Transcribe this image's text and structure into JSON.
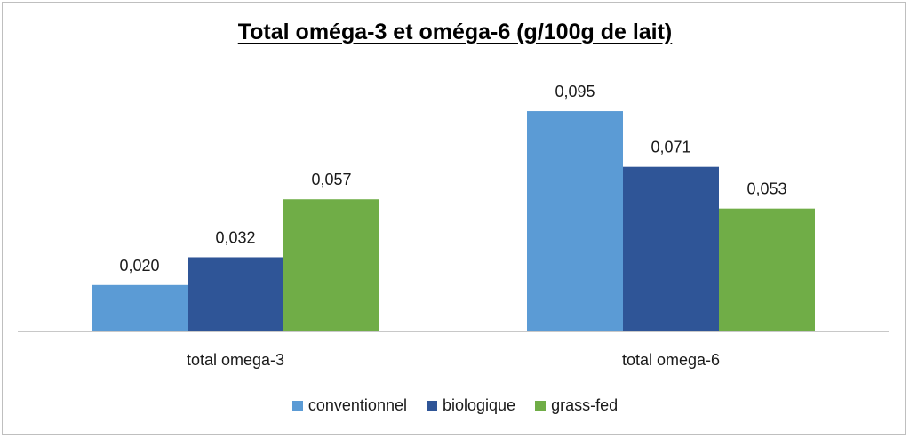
{
  "chart_data": {
    "type": "bar",
    "title": "Total oméga-3 et oméga-6 (g/100g de lait)",
    "categories": [
      "total omega-3",
      "total omega-6"
    ],
    "series": [
      {
        "name": "conventionnel",
        "color": "#5b9bd5",
        "values": [
          0.02,
          0.095
        ],
        "labels": [
          "0,020",
          "0,095"
        ]
      },
      {
        "name": "biologique",
        "color": "#2f5597",
        "values": [
          0.032,
          0.071
        ],
        "labels": [
          "0,032",
          "0,071"
        ]
      },
      {
        "name": "grass-fed",
        "color": "#70ad47",
        "values": [
          0.057,
          0.053
        ],
        "labels": [
          "0,057",
          "0,053"
        ]
      }
    ],
    "ylim": [
      0,
      0.1
    ],
    "grid": false,
    "legend": "bottom"
  }
}
